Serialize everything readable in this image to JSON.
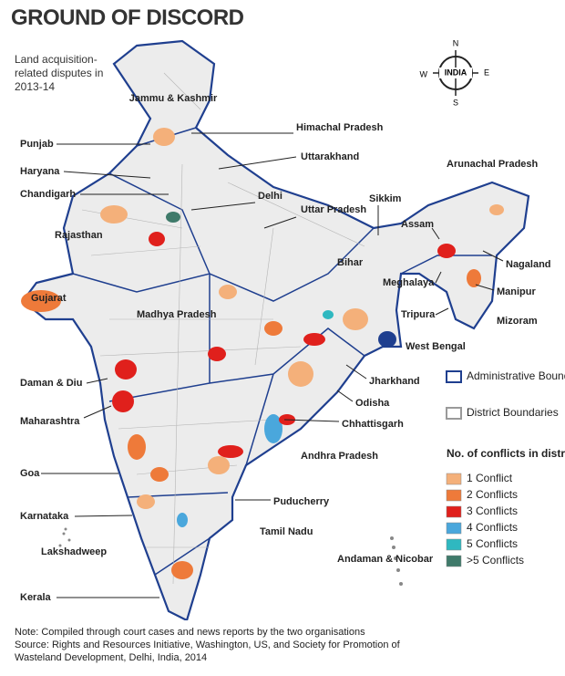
{
  "title": "GROUND OF DISCORD",
  "subtitle": "Land acquisition-related disputes in 2013-14",
  "compass": {
    "center": "INDIA",
    "n": "N",
    "e": "E",
    "s": "S",
    "w": "W"
  },
  "labels": [
    "Jammu & Kashmir",
    "Himachal Pradesh",
    "Punjab",
    "Uttarakhand",
    "Haryana",
    "Chandigarh",
    "Delhi",
    "Uttar Pradesh",
    "Sikkim",
    "Arunachal Pradesh",
    "Rajasthan",
    "Assam",
    "Bihar",
    "Nagaland",
    "Gujarat",
    "Meghalaya",
    "Manipur",
    "Madhya Pradesh",
    "Tripura",
    "Mizoram",
    "West Bengal",
    "Daman & Diu",
    "Jharkhand",
    "Maharashtra",
    "Odisha",
    "Chhattisgarh",
    "Andhra Pradesh",
    "Goa",
    "Puducherry",
    "Karnataka",
    "Tamil Nadu",
    "Lakshadweep",
    "Andaman & Nicobar",
    "Kerala"
  ],
  "legend": {
    "boundaries": [
      {
        "label": "Administrative Boundaries",
        "color": "#1f3f8f"
      },
      {
        "label": "District Boundaries",
        "color": "#9a9a9a"
      }
    ],
    "conflicts_title": "No. of conflicts in districts",
    "conflicts": [
      {
        "label": "1 Conflict",
        "color": "#f4b07a"
      },
      {
        "label": "2 Conflicts",
        "color": "#ee7a3a"
      },
      {
        "label": "3 Conflicts",
        "color": "#e0201c"
      },
      {
        "label": "4 Conflicts",
        "color": "#4aa7dc"
      },
      {
        "label": "5 Conflicts",
        "color": "#2fb8c0"
      },
      {
        "label": ">5 Conflicts",
        "color": "#3f7a6a"
      }
    ]
  },
  "note": "Note: Compiled through court cases and news reports by the two organisations",
  "source": "Source: Rights and Resources Initiative, Washington, US, and Society for Promotion of Wasteland Development, Delhi, India, 2014"
}
